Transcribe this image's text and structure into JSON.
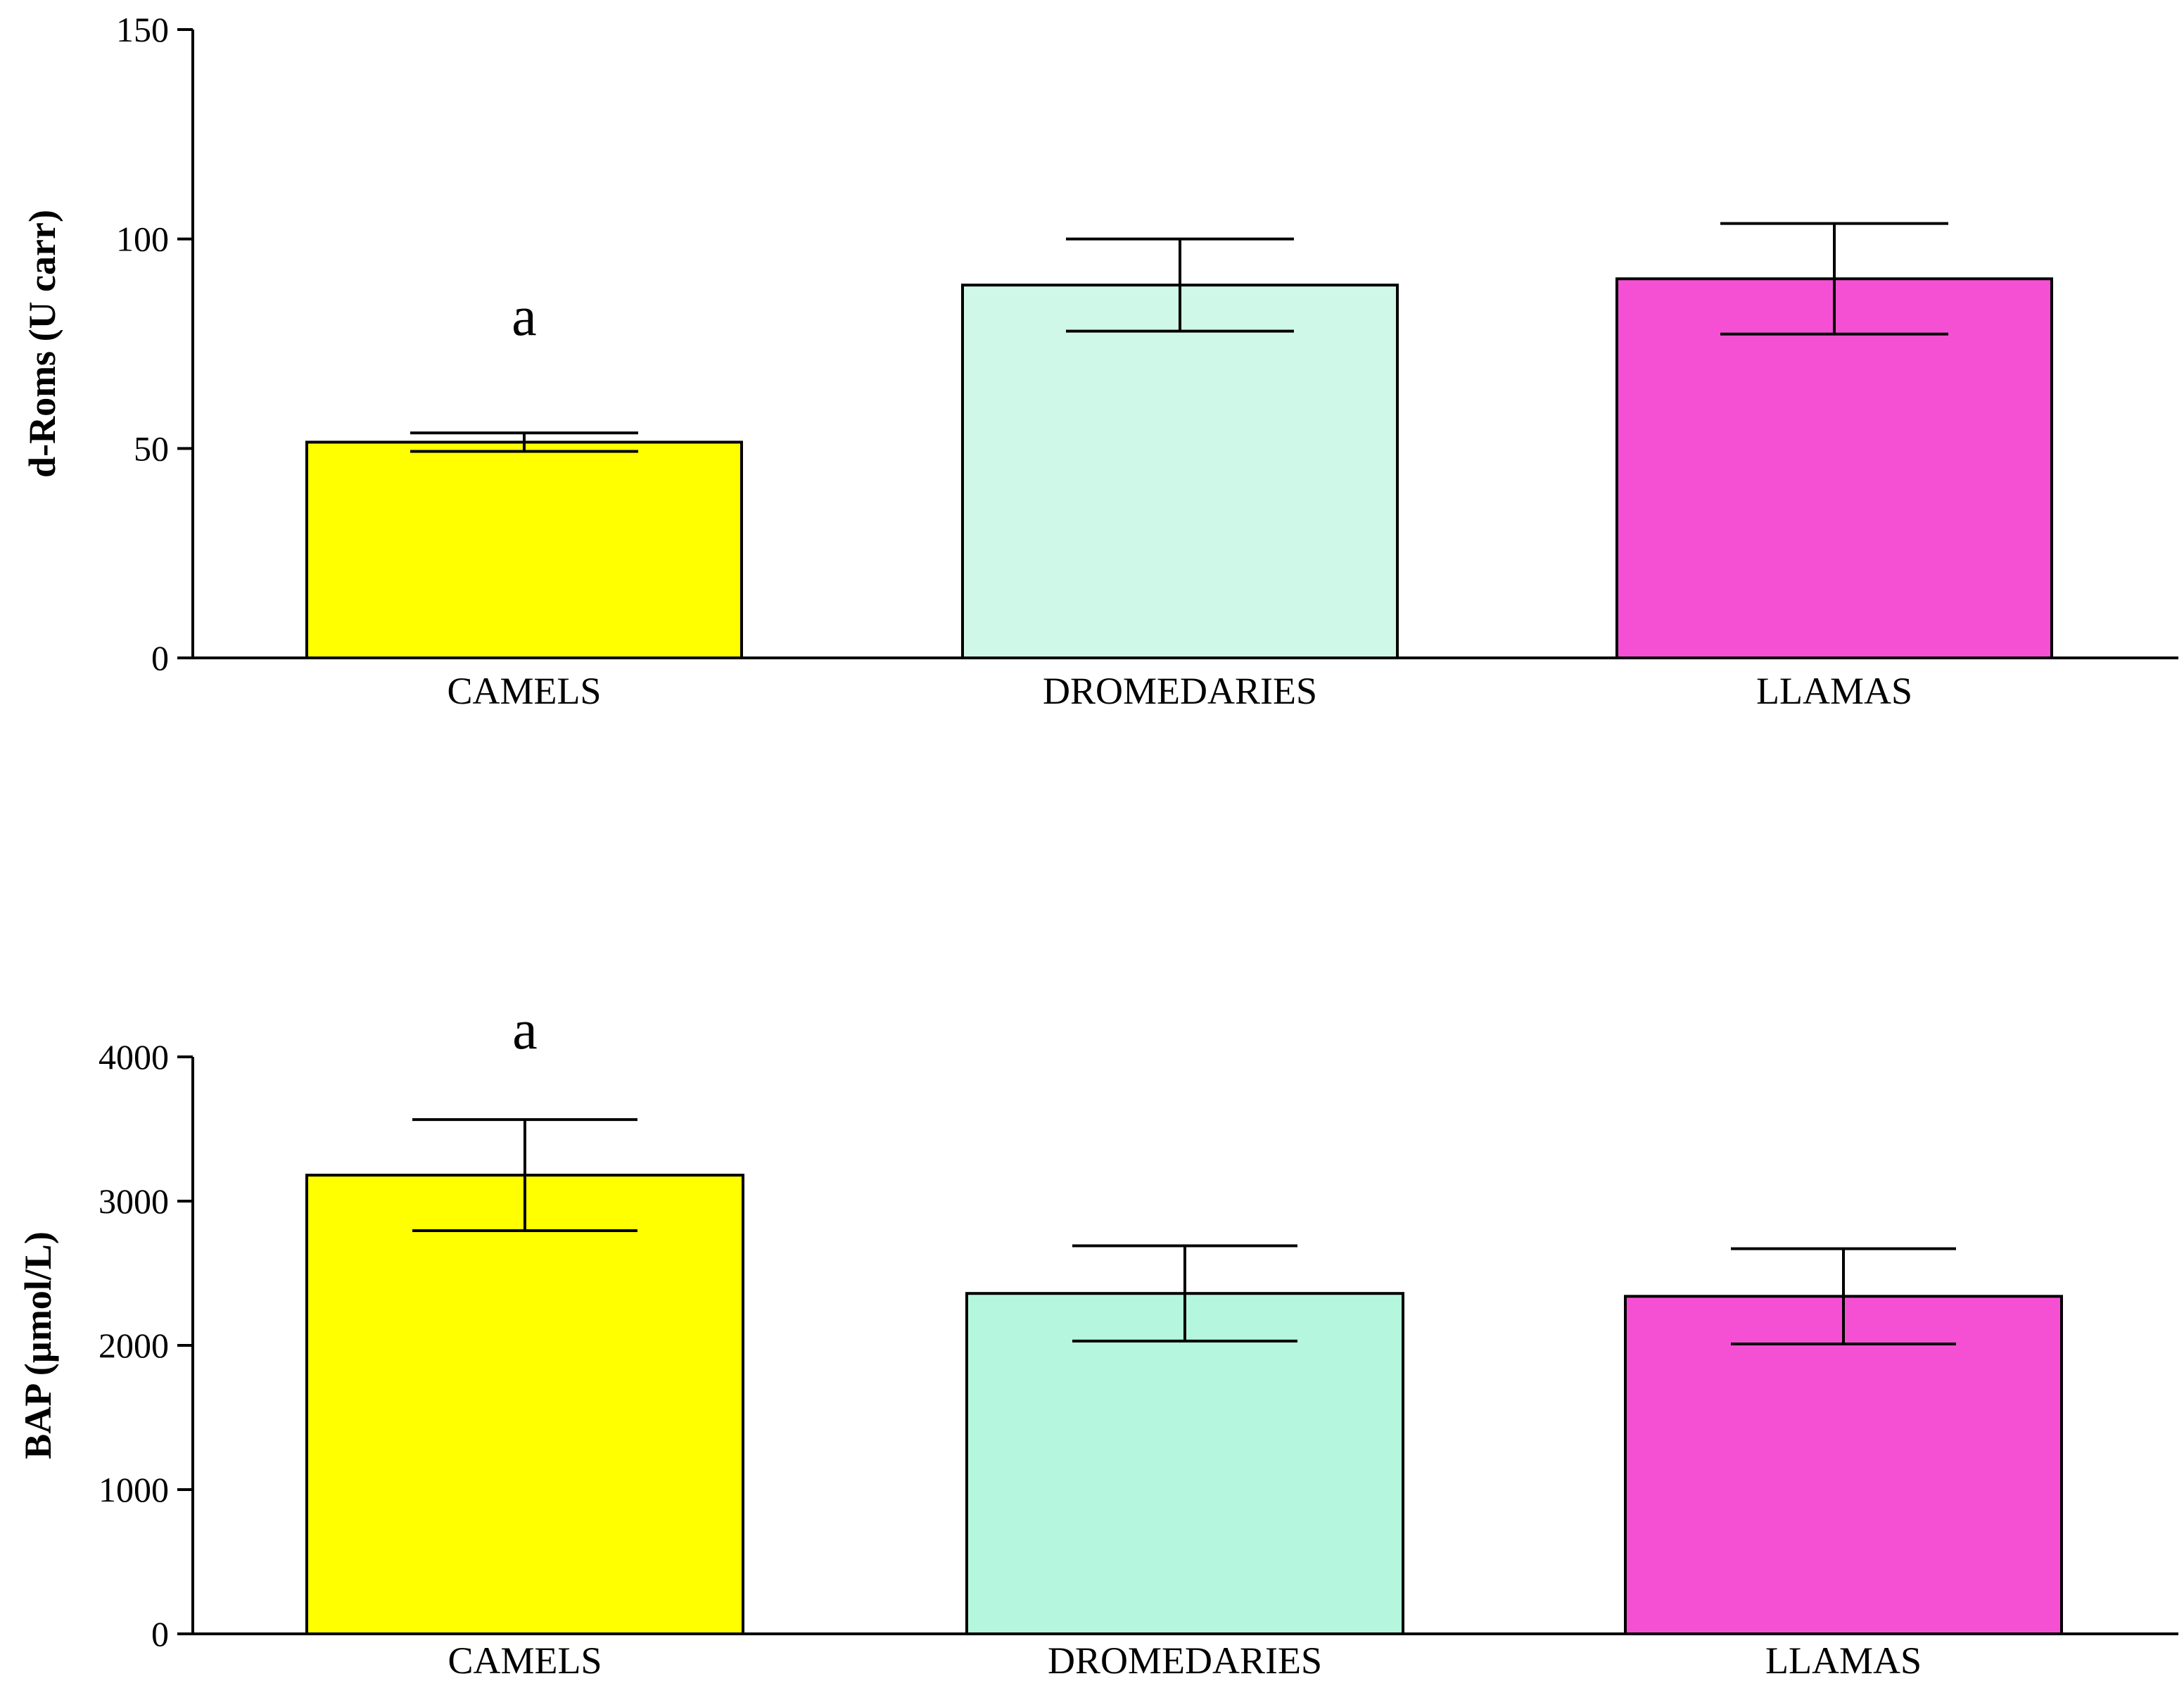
{
  "chart_data": [
    {
      "type": "bar",
      "categories": [
        "CAMELS",
        "DROMEDARIES",
        "LLAMAS"
      ],
      "values": [
        51.5,
        89,
        90.5
      ],
      "errors": [
        2.2,
        11,
        13.2
      ],
      "colors": [
        "#ffff00",
        "#d0f8e8",
        "#f550d4"
      ],
      "ylabel": "d-Roms (U carr)",
      "ylim": [
        0,
        150
      ],
      "yticks": [
        "0",
        "50",
        "100",
        "150"
      ],
      "annotations": [
        {
          "category": "CAMELS",
          "text": "a"
        }
      ],
      "grid": false
    },
    {
      "type": "bar",
      "categories": [
        "CAMELS",
        "DROMEDARIES",
        "LLAMAS"
      ],
      "values": [
        3180,
        2360,
        2340
      ],
      "errors": [
        385,
        330,
        330
      ],
      "colors": [
        "#ffff00",
        "#b4f6de",
        "#f550d4"
      ],
      "ylabel": "BAP (µmol/L)",
      "ylim": [
        0,
        4000
      ],
      "yticks": [
        "0",
        "1000",
        "2000",
        "3000",
        "4000"
      ],
      "annotations": [
        {
          "category": "CAMELS",
          "text": "a"
        }
      ],
      "grid": false
    }
  ]
}
